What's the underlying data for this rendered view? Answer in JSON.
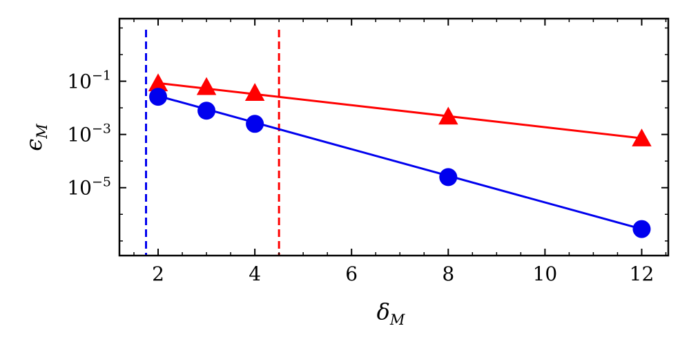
{
  "chart_data": {
    "type": "line",
    "xlabel": "δ",
    "xlabel_sub": "M",
    "ylabel": "ϵ",
    "ylabel_sub": "M",
    "xlim": [
      1.2,
      12.55
    ],
    "ylim_log10": [
      -7.55,
      1.35
    ],
    "y_scale": "log",
    "x_ticks": [
      2,
      4,
      6,
      8,
      10,
      12
    ],
    "x_tick_labels": [
      "2",
      "4",
      "6",
      "8",
      "10",
      "12"
    ],
    "y_ticks_log10": [
      -5,
      -3,
      -1
    ],
    "y_tick_base": "10",
    "y_tick_exponents": [
      "−5",
      "−3",
      "−1"
    ],
    "grid": false,
    "legend": "none",
    "series": [
      {
        "color": "#ff0000",
        "marker": "triangle",
        "x": [
          2,
          3,
          4,
          8,
          12
        ],
        "y": [
          0.08,
          0.058,
          0.035,
          0.0045,
          0.00068
        ],
        "fit_y_at_2": 0.085,
        "fit_y_at_12": 0.00072
      },
      {
        "color": "#0000ee",
        "marker": "circle",
        "x": [
          2,
          3,
          4,
          8,
          12
        ],
        "y": [
          0.026,
          0.0078,
          0.0025,
          2.5e-05,
          2.8e-07
        ],
        "fit_y_at_2": 0.028,
        "fit_y_at_12": 2.8e-07
      }
    ],
    "vlines": [
      {
        "x": 1.75,
        "color": "#0000ee",
        "style": "dashed"
      },
      {
        "x": 4.5,
        "color": "#ff0000",
        "style": "dashed"
      }
    ]
  }
}
